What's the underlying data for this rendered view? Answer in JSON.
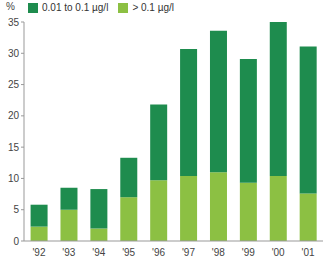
{
  "chart_data": {
    "type": "bar",
    "stacked": true,
    "y_label": "%",
    "categories": [
      "'92",
      "'93",
      "'94",
      "'95",
      "'96",
      "'97",
      "'98",
      "'99",
      "'00",
      "'01"
    ],
    "series": [
      {
        "name": "0.01 to 0.1 µg/l",
        "color": "#1e8c4e",
        "values": [
          3.5,
          3.5,
          6.3,
          6.3,
          12.1,
          20.3,
          22.6,
          19.8,
          24.6,
          23.5
        ]
      },
      {
        "name": "> 0.1 µg/l",
        "color": "#8cc043",
        "values": [
          2.3,
          5.0,
          2.0,
          7.0,
          9.7,
          10.4,
          11.0,
          9.3,
          10.4,
          7.6
        ]
      }
    ],
    "ylim": [
      0,
      35
    ],
    "yticks": [
      0,
      5,
      10,
      15,
      20,
      25,
      30,
      35
    ],
    "legend": "top left",
    "grid": false
  }
}
